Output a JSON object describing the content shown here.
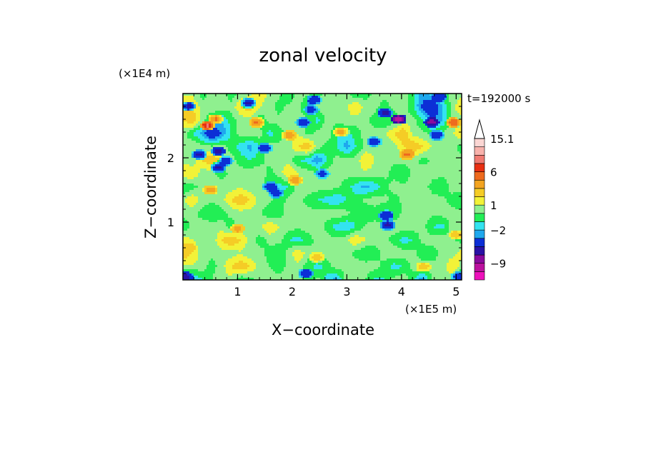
{
  "chart_data": {
    "type": "heatmap",
    "title": "zonal velocity",
    "xlabel": "X−coordinate",
    "ylabel": "Z−coordinate",
    "x_unit": "(×1E5 m)",
    "y_unit": "(×1E4 m)",
    "time_label": "t=192000 s",
    "xlim": [
      0,
      5.1
    ],
    "ylim": [
      0.1,
      3.0
    ],
    "x_ticks": [
      1,
      2,
      3,
      4,
      5
    ],
    "x_tick_labels": [
      "1",
      "2",
      "3",
      "4",
      "5"
    ],
    "y_ticks": [
      1,
      2
    ],
    "y_tick_labels": [
      "1",
      "2"
    ],
    "grid": false,
    "colorbar": {
      "levels": [
        -13,
        -11,
        -9,
        -7,
        -5,
        -3,
        -2,
        -1,
        0,
        1,
        2,
        3,
        4.5,
        6,
        8,
        10,
        12.5,
        15.1
      ],
      "colors": [
        "#ee11bb",
        "#bb119e",
        "#8b0a9e",
        "#2a12a6",
        "#0c2fd6",
        "#1fa8ee",
        "#33e3f0",
        "#22ee55",
        "#8ff08f",
        "#f2f238",
        "#f5cc26",
        "#f3a420",
        "#ee6a1e",
        "#e82f12",
        "#f07a72",
        "#f8b2ac",
        "#fbd6d3"
      ],
      "labels": [
        {
          "value": 15.1,
          "text": "15.1"
        },
        {
          "value": 6,
          "text": "6"
        },
        {
          "value": 1,
          "text": "1"
        },
        {
          "value": -2,
          "text": "−2"
        },
        {
          "value": -9,
          "text": "−9"
        }
      ],
      "extend_max": true
    },
    "field": {
      "nx": 30,
      "nz": 15,
      "x_range": [
        0,
        5.1
      ],
      "z_range": [
        0.1,
        3.0
      ],
      "values": [
        [
          -2.5,
          -2.5,
          -1,
          0,
          0.8,
          0.5,
          -1,
          -0.5,
          0.5,
          0.8,
          0.3,
          0.5,
          0.8,
          -1,
          0.5,
          -1.5,
          -2.5,
          0.5,
          1,
          0,
          -1.5,
          -1,
          0.5,
          0.8,
          -1,
          -3,
          0.5,
          1,
          0,
          -2
        ],
        [
          0.5,
          0.8,
          0.5,
          -0.5,
          0.5,
          2,
          3,
          2,
          0.5,
          0,
          -0.5,
          0.3,
          0.5,
          -0.5,
          -1.5,
          -0.5,
          0.5,
          0.3,
          0.8,
          0.5,
          0.5,
          -0.5,
          -1.5,
          -1,
          0.5,
          0.8,
          0.3,
          0.5,
          2,
          0.5
        ],
        [
          3,
          2,
          0.5,
          0.3,
          0.5,
          0.5,
          0.8,
          0.3,
          0.5,
          -0.5,
          -1,
          0.5,
          2,
          0.5,
          0.3,
          0.5,
          0.8,
          0.5,
          -0.5,
          -1,
          -0.5,
          0.5,
          0.8,
          0.5,
          0.5,
          -1,
          -0.5,
          0.3,
          0.5,
          1.5
        ],
        [
          1.5,
          1,
          0.5,
          0.3,
          2,
          3,
          2,
          0.5,
          -0.5,
          0.3,
          0.5,
          -1,
          -1.5,
          -0.5,
          0.3,
          0.5,
          0.3,
          0.8,
          2,
          1,
          0.5,
          0.3,
          -0.5,
          -1.5,
          -1,
          0.5,
          0.5,
          0.8,
          0.3,
          -0.5
        ],
        [
          -1,
          0.5,
          0.8,
          0.5,
          0.5,
          -0.5,
          0.3,
          0.5,
          0.8,
          2,
          1,
          0.5,
          0.3,
          0.5,
          0.8,
          -0.5,
          -1.5,
          -2,
          -1,
          0.3,
          0.5,
          0.3,
          0.8,
          0.5,
          0.5,
          0.3,
          -1,
          -1.5,
          0.5,
          0.8
        ],
        [
          0.5,
          0.3,
          -0.5,
          -1,
          -0.5,
          0.3,
          0.5,
          0.5,
          0.3,
          -1,
          -0.5,
          0.5,
          0.8,
          0.5,
          0.3,
          0.5,
          0.8,
          0.3,
          -0.5,
          -1,
          -0.5,
          -1.5,
          -1,
          0.5,
          0.5,
          0.8,
          0.3,
          0.5,
          0.5,
          0.3
        ],
        [
          0.8,
          2,
          0.5,
          0.3,
          0.5,
          2,
          3,
          2,
          0.5,
          0.3,
          -0.5,
          0.3,
          0.5,
          -0.5,
          -1,
          -1.5,
          -2,
          -1,
          -0.5,
          0.3,
          0.5,
          0.3,
          -0.5,
          0.3,
          0.5,
          0.8,
          0.5,
          0.3,
          -0.5,
          -1
        ],
        [
          -1,
          -0.5,
          0.5,
          0.8,
          0.5,
          0.5,
          0.8,
          0.3,
          0.5,
          -0.5,
          -1.5,
          -1,
          0.5,
          0.8,
          0.5,
          0.5,
          0.3,
          -0.5,
          -1.5,
          -2.5,
          -1.5,
          -0.5,
          0.5,
          0.3,
          0.8,
          0.5,
          -0.5,
          -1,
          0.5,
          0.5
        ],
        [
          2,
          2,
          0.5,
          0.3,
          -0.5,
          0.3,
          0.5,
          0.5,
          0.8,
          -0.5,
          0.5,
          2,
          1,
          0.5,
          0.3,
          0.5,
          0.5,
          0.3,
          0.5,
          0.8,
          0.5,
          0.3,
          -0.5,
          -1,
          0.5,
          0.8,
          0.5,
          0.3,
          0.5,
          0.3
        ],
        [
          0.5,
          0.3,
          2,
          3,
          2,
          0.5,
          -0.5,
          -1,
          -0.5,
          0.5,
          0.8,
          0.5,
          -1,
          -1.5,
          -3,
          -1,
          0.5,
          0.3,
          0.5,
          2,
          1,
          0.5,
          0.3,
          0.5,
          0.3,
          -0.5,
          0.3,
          0.5,
          0.8,
          0.5
        ],
        [
          0.5,
          1,
          0.5,
          0.3,
          0.5,
          -0.5,
          -1.5,
          -2.5,
          -1,
          0.5,
          0.3,
          0.5,
          2,
          3,
          0.5,
          -0.5,
          -1,
          -2.5,
          -1,
          0.3,
          0.5,
          0.3,
          0.5,
          2,
          3,
          2,
          0.8,
          0.5,
          0.3,
          -0.5
        ],
        [
          0.5,
          -1,
          -2.5,
          -5,
          -3,
          -1,
          0.5,
          0.8,
          0.5,
          -1.5,
          -0.5,
          0.5,
          1,
          -0.5,
          0.5,
          0.8,
          -1,
          -1.5,
          -0.5,
          0.5,
          0.3,
          0.8,
          2,
          3,
          0.5,
          0.3,
          -0.5,
          0.3,
          0.8,
          2
        ],
        [
          2,
          3,
          0.5,
          -1,
          -2,
          -0.5,
          0.5,
          0.3,
          -1,
          0.5,
          0.3,
          1,
          0.5,
          0.3,
          -1.5,
          0.5,
          0.3,
          0.8,
          0.5,
          0.3,
          -0.5,
          -1,
          -0.5,
          0.5,
          0.3,
          -1,
          -3,
          -2,
          0.5,
          0.3
        ],
        [
          3,
          2,
          0.5,
          0.8,
          0.5,
          0.3,
          2,
          3,
          1,
          0.5,
          -0.5,
          0.3,
          0.5,
          -1.5,
          0.5,
          0.3,
          0.5,
          0.8,
          2,
          0.5,
          0.3,
          -0.5,
          0.3,
          0.5,
          -1,
          -3.5,
          -5,
          -2,
          0.5,
          2
        ],
        [
          0.5,
          0.8,
          -0.5,
          0.3,
          0.5,
          -0.5,
          0.3,
          0.5,
          2,
          0.5,
          0.3,
          -1,
          0.5,
          0.3,
          -0.5,
          0.5,
          0.8,
          0.5,
          -1,
          -0.5,
          0.3,
          0.5,
          0.8,
          0.5,
          -1,
          -2.5,
          -1.5,
          -0.5,
          0.3,
          0.5
        ]
      ],
      "features": [
        {
          "x": 0.1,
          "z": 2.8,
          "v": -6
        },
        {
          "x": 1.2,
          "z": 2.85,
          "v": -6
        },
        {
          "x": 2.4,
          "z": 2.9,
          "v": -5
        },
        {
          "x": 4.7,
          "z": 2.95,
          "v": -5
        },
        {
          "x": 0.45,
          "z": 2.5,
          "v": 9
        },
        {
          "x": 0.6,
          "z": 2.6,
          "v": 5
        },
        {
          "x": 1.35,
          "z": 2.55,
          "v": 5
        },
        {
          "x": 4.95,
          "z": 2.55,
          "v": 6
        },
        {
          "x": 0.3,
          "z": 2.05,
          "v": -6
        },
        {
          "x": 0.65,
          "z": 2.1,
          "v": -7
        },
        {
          "x": 0.65,
          "z": 1.85,
          "v": -6
        },
        {
          "x": 0.78,
          "z": 1.95,
          "v": -5
        },
        {
          "x": 1.5,
          "z": 2.15,
          "v": -5
        },
        {
          "x": 2.2,
          "z": 2.55,
          "v": -5
        },
        {
          "x": 2.35,
          "z": 2.75,
          "v": -4
        },
        {
          "x": 3.5,
          "z": 2.25,
          "v": -5
        },
        {
          "x": 3.7,
          "z": 2.7,
          "v": -6
        },
        {
          "x": 3.95,
          "z": 2.6,
          "v": -11
        },
        {
          "x": 4.55,
          "z": 2.55,
          "v": -8
        },
        {
          "x": 4.65,
          "z": 2.35,
          "v": -5
        },
        {
          "x": 1.6,
          "z": 1.55,
          "v": -5
        },
        {
          "x": 1.7,
          "z": 1.45,
          "v": -4
        },
        {
          "x": 0.5,
          "z": 1.5,
          "v": 4
        },
        {
          "x": 4.1,
          "z": 2.05,
          "v": 5
        },
        {
          "x": 0.1,
          "z": 0.6,
          "v": 3
        },
        {
          "x": 1.0,
          "z": 0.9,
          "v": 4
        },
        {
          "x": 3.75,
          "z": 0.95,
          "v": -6
        },
        {
          "x": 3.72,
          "z": 1.1,
          "v": -5
        },
        {
          "x": 4.4,
          "z": 0.3,
          "v": 3
        },
        {
          "x": 5.0,
          "z": 0.8,
          "v": 3
        },
        {
          "x": 0.05,
          "z": 0.15,
          "v": -6
        },
        {
          "x": 5.05,
          "z": 0.15,
          "v": -5
        },
        {
          "x": 2.25,
          "z": 0.2,
          "v": -5
        },
        {
          "x": 2.45,
          "z": 0.45,
          "v": 3
        },
        {
          "x": 2.55,
          "z": 1.75,
          "v": -4
        },
        {
          "x": 2.05,
          "z": 1.65,
          "v": 4
        },
        {
          "x": 1.95,
          "z": 2.35,
          "v": 4
        },
        {
          "x": 2.9,
          "z": 2.4,
          "v": 4
        }
      ]
    }
  }
}
